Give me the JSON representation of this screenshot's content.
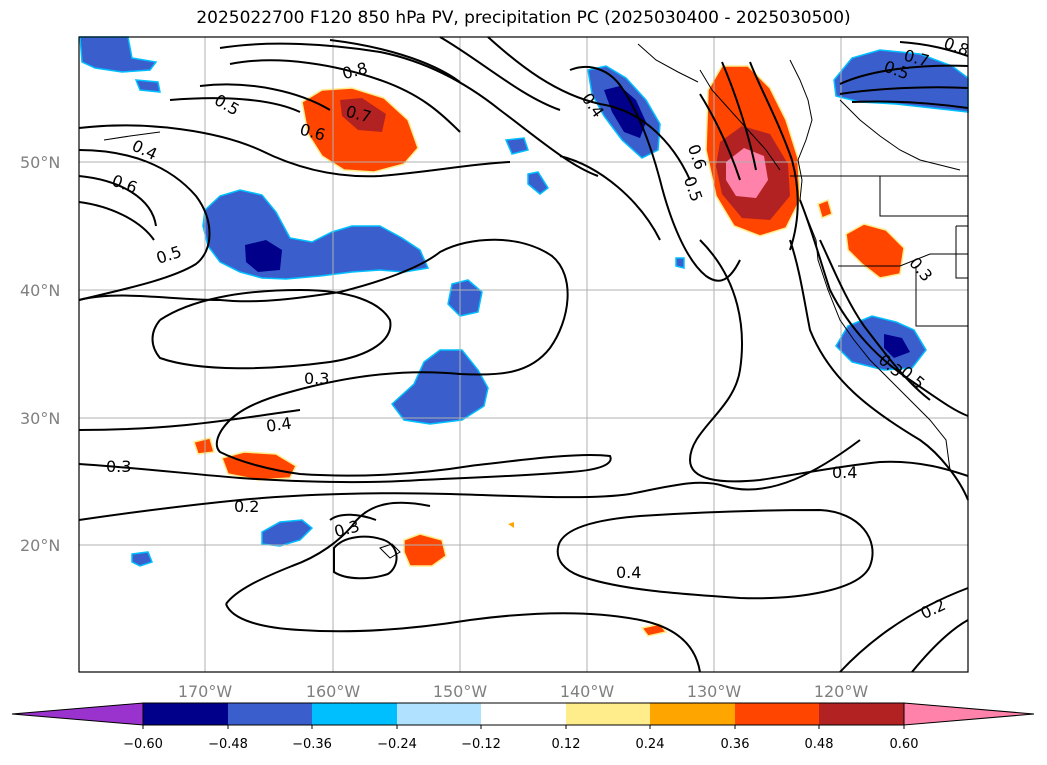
{
  "title": "2025022700 F120 850 hPa PV, precipitation PC (2025030400 - 2025030500)",
  "map": {
    "lat_labels": [
      "50°N",
      "40°N",
      "30°N",
      "20°N"
    ],
    "lon_labels": [
      "170°W",
      "160°W",
      "150°W",
      "140°W",
      "130°W",
      "120°W"
    ],
    "contour_labels": [
      "0.5",
      "0.8",
      "0.7",
      "0.6",
      "0.4",
      "0.6",
      "0.5",
      "0.4",
      "0.6",
      "0.5",
      "0.3",
      "0.4",
      "0.3",
      "0.2",
      "0.3",
      "0.4",
      "0.4",
      "0.2",
      "0.7",
      "0.8",
      "0.5",
      "0.3",
      "0.3",
      "0.5"
    ]
  },
  "colorbar": {
    "ticks": [
      "−0.60",
      "−0.48",
      "−0.36",
      "−0.24",
      "−0.12",
      "0.12",
      "0.24",
      "0.36",
      "0.48",
      "0.60"
    ],
    "colors": [
      "#9a32cd",
      "#00008b",
      "#3a5fcd",
      "#00bfff",
      "#b0e2ff",
      "#ffffff",
      "#ffec8b",
      "#ffa500",
      "#ff4500",
      "#b22222",
      "#ff82ab"
    ]
  }
}
